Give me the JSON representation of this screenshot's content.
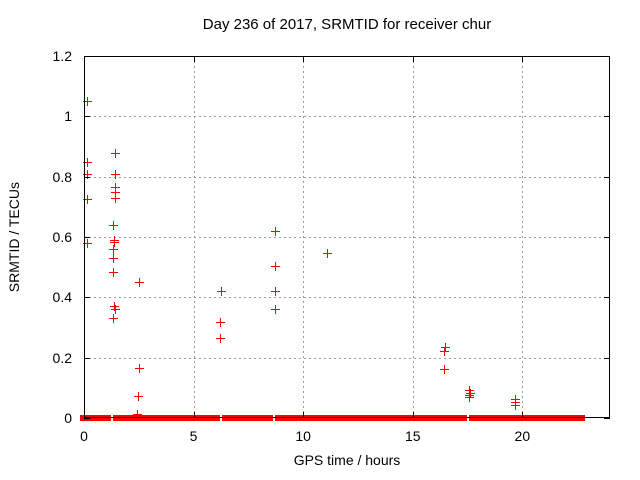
{
  "chart_data": {
    "type": "scatter",
    "title": "Day 236 of 2017, SRMTID for receiver chur",
    "xlabel": "GPS time / hours",
    "ylabel": "SRMTID / TECUs",
    "xlim": [
      0,
      24
    ],
    "ylim": [
      0,
      1.2
    ],
    "grid": true,
    "legend": "none",
    "marker": "plus",
    "marker_color": "#ff0000",
    "axis_color": "#000000",
    "grid_color": "#9a9a9a",
    "xticks": [
      {
        "v": 0,
        "label": "0"
      },
      {
        "v": 5,
        "label": "5"
      },
      {
        "v": 10,
        "label": "10"
      },
      {
        "v": 15,
        "label": "15"
      },
      {
        "v": 20,
        "label": "20"
      }
    ],
    "yticks": [
      {
        "v": 0,
        "label": "0"
      },
      {
        "v": 0.2,
        "label": "0.2"
      },
      {
        "v": 0.4,
        "label": "0.4"
      },
      {
        "v": 0.6,
        "label": "0.6"
      },
      {
        "v": 0.8,
        "label": "0.8"
      },
      {
        "v": 1.0,
        "label": "1"
      },
      {
        "v": 1.2,
        "label": "1.2"
      }
    ],
    "series": [
      {
        "name": "SRMTID",
        "points": [
          [
            0.15,
            1.05
          ],
          [
            0.15,
            0.85
          ],
          [
            0.12,
            0.81
          ],
          [
            0.12,
            0.725
          ],
          [
            0.12,
            0.58
          ],
          [
            1.42,
            0.88
          ],
          [
            1.42,
            0.81
          ],
          [
            1.4,
            0.765
          ],
          [
            1.42,
            0.75
          ],
          [
            1.4,
            0.73
          ],
          [
            1.34,
            0.64
          ],
          [
            1.35,
            0.59
          ],
          [
            1.36,
            0.585
          ],
          [
            1.34,
            0.56
          ],
          [
            1.34,
            0.53
          ],
          [
            1.34,
            0.485
          ],
          [
            1.39,
            0.37
          ],
          [
            1.4,
            0.362
          ],
          [
            1.34,
            0.33
          ],
          [
            2.53,
            0.45
          ],
          [
            2.5,
            0.165
          ],
          [
            2.48,
            0.072
          ],
          [
            2.42,
            0.012
          ],
          [
            6.25,
            0.42
          ],
          [
            6.22,
            0.318
          ],
          [
            6.22,
            0.265
          ],
          [
            8.73,
            0.62
          ],
          [
            8.73,
            0.503
          ],
          [
            8.73,
            0.422
          ],
          [
            8.73,
            0.362
          ],
          [
            11.09,
            0.548
          ],
          [
            16.45,
            0.236
          ],
          [
            16.42,
            0.222
          ],
          [
            16.42,
            0.163
          ],
          [
            17.55,
            0.092
          ],
          [
            17.6,
            0.084
          ],
          [
            17.55,
            0.076
          ],
          [
            17.58,
            0.069
          ],
          [
            19.65,
            0.062
          ],
          [
            19.65,
            0.052
          ],
          [
            19.65,
            0.043
          ]
        ]
      }
    ],
    "zero_band": {
      "y": 0,
      "x_start": 0,
      "x_end": 22.85,
      "gaps_at_hours": [
        1.3,
        6.24,
        8.68,
        17.53
      ],
      "note": "continuous run of zero-valued markers along y=0"
    }
  }
}
